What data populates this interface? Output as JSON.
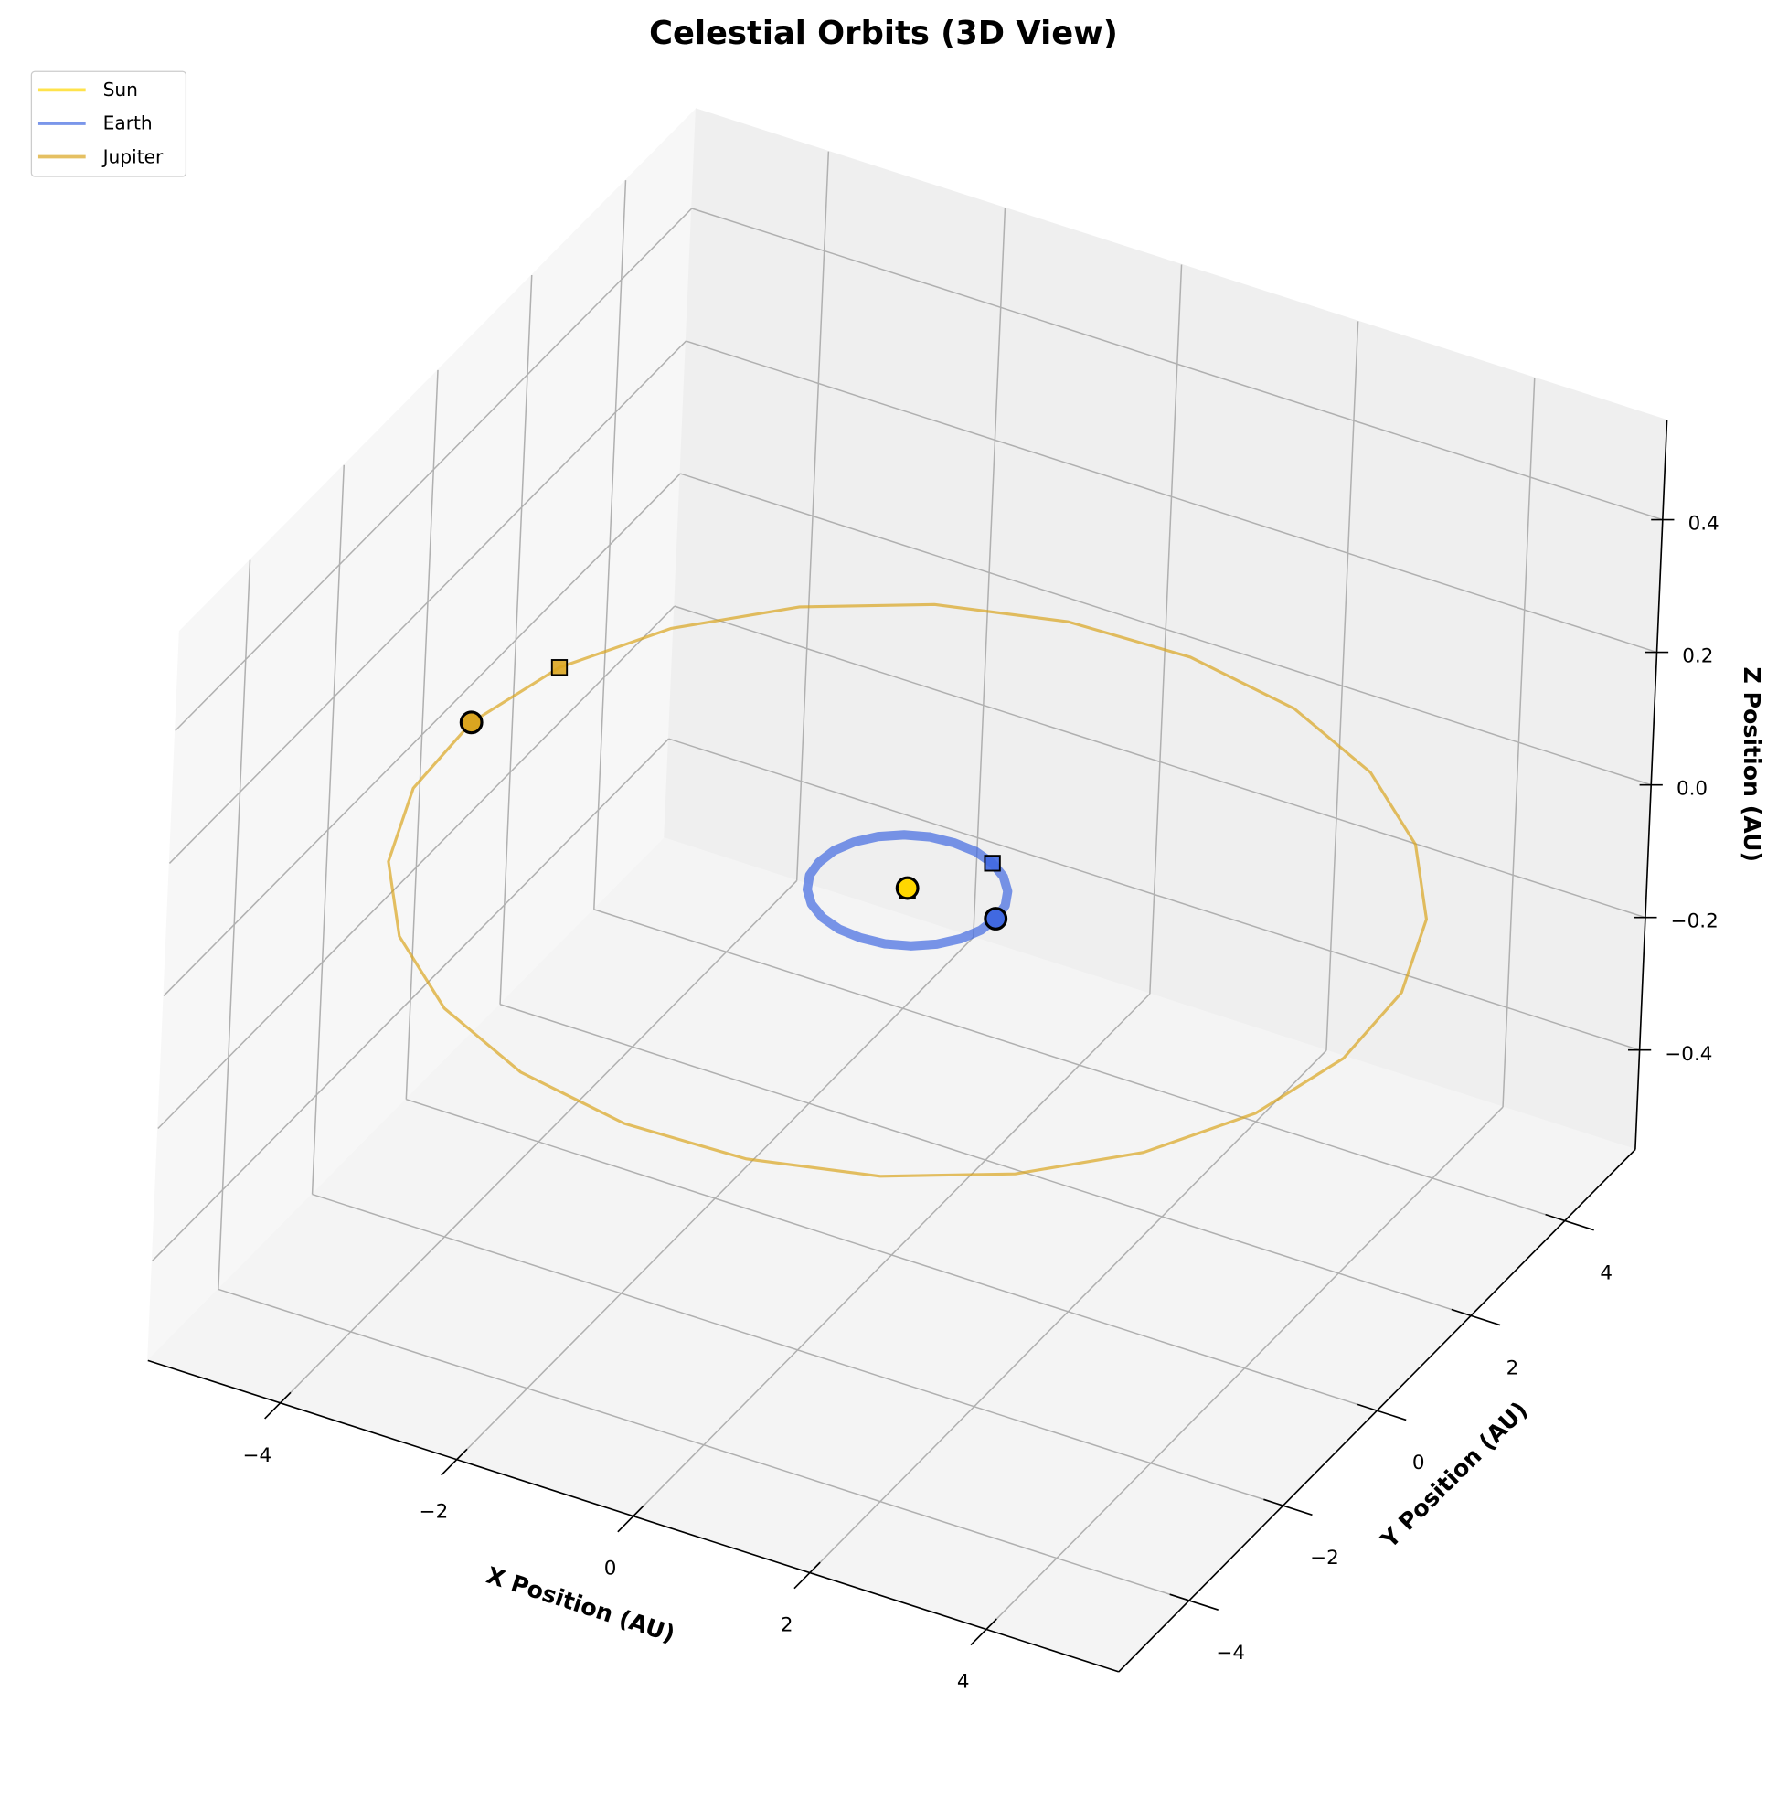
{
  "chart_data": {
    "type": "line3d",
    "title": "Celestial Orbits (3D View)",
    "xlabel": "X Position (AU)",
    "ylabel": "Y Position (AU)",
    "zlabel": "Z Position (AU)",
    "xlim": [
      -5.5,
      5.5
    ],
    "ylim": [
      -5.5,
      5.5
    ],
    "zlim": [
      -0.55,
      0.55
    ],
    "xticks": [
      {
        "value": -4,
        "label": "−4"
      },
      {
        "value": -2,
        "label": "−2"
      },
      0,
      2,
      4
    ],
    "yticks": [
      {
        "value": -4,
        "label": "−4"
      },
      {
        "value": -2,
        "label": "−2"
      },
      0,
      2,
      4
    ],
    "zticks": [
      {
        "value": -0.4,
        "label": "−0.4"
      },
      {
        "value": -0.2,
        "label": "−0.2"
      },
      {
        "value": 0,
        "label": "0.0"
      },
      0.2,
      0.4
    ],
    "grid": true,
    "legend": "upper left",
    "series": [
      {
        "name": "Sun",
        "color": "#FFD700",
        "x": [
          0
        ],
        "y": [
          0
        ],
        "z": [
          0
        ]
      },
      {
        "name": "Earth",
        "color": "#4169E1",
        "x": [
          0.5,
          0.26,
          0,
          -0.26,
          -0.5,
          -0.71,
          -0.87,
          -0.97,
          -1,
          -0.97,
          -0.87,
          -0.71,
          -0.5,
          -0.26,
          0,
          0.26,
          0.5,
          0.71,
          0.87,
          0.97,
          1,
          0.97,
          0.87,
          0.71,
          0.5,
          0.26,
          0,
          -0.26,
          -0.5,
          -0.71,
          -0.87,
          -0.97,
          -1,
          -0.97,
          -0.87,
          -0.71,
          -0.5,
          -0.26,
          0,
          0.26,
          0.5,
          0.71,
          0.87,
          0.97,
          1
        ],
        "y": [
          0.87,
          0.97,
          1,
          0.97,
          0.87,
          0.71,
          0.5,
          0.26,
          0,
          -0.26,
          -0.5,
          -0.71,
          -0.87,
          -0.97,
          -1,
          -0.97,
          -0.87,
          -0.71,
          -0.5,
          -0.26,
          0,
          0.26,
          0.5,
          0.71,
          0.87,
          0.97,
          1,
          0.97,
          0.87,
          0.71,
          0.5,
          0.26,
          0,
          -0.26,
          -0.5,
          -0.71,
          -0.87,
          -0.97,
          -1,
          -0.97,
          -0.87,
          -0.71,
          -0.5,
          -0.26,
          0
        ],
        "z": [
          0,
          0,
          0,
          0,
          0,
          0,
          0,
          0,
          0,
          0,
          0,
          0,
          0,
          0,
          0,
          0,
          0,
          0,
          0,
          0,
          0,
          0,
          0,
          0,
          0,
          0,
          0,
          0,
          0,
          0,
          0,
          0,
          0,
          0,
          0,
          0,
          0,
          0,
          0,
          0,
          0,
          0,
          0,
          0,
          0
        ]
      },
      {
        "name": "Jupiter",
        "color": "#DAA520",
        "x": [
          -4.89,
          -5.18,
          -5.12,
          -4.71,
          -3.98,
          -2.98,
          -1.78,
          -0.45,
          0.9,
          2.2,
          3.34,
          4.26,
          4.89,
          5.18,
          5.12,
          4.71,
          3.98,
          2.98,
          1.78,
          0.45,
          -0.9,
          -2.2,
          -3.34,
          -4.26,
          -4.89,
          -5.18
        ],
        "y": [
          1.78,
          0.45,
          -0.9,
          -2.2,
          -3.34,
          -4.26,
          -4.89,
          -5.18,
          -5.12,
          -4.71,
          -3.98,
          -2.98,
          -1.78,
          -0.45,
          0.9,
          2.2,
          3.34,
          4.26,
          4.89,
          5.18,
          5.12,
          4.71,
          3.98,
          2.98,
          1.78,
          0.45
        ],
        "z": [
          0,
          0,
          0,
          0,
          0,
          0,
          0,
          0,
          0,
          0,
          0,
          0,
          0,
          0,
          0,
          0,
          0,
          0,
          0,
          0,
          0,
          0,
          0,
          0,
          0,
          0
        ]
      }
    ]
  }
}
